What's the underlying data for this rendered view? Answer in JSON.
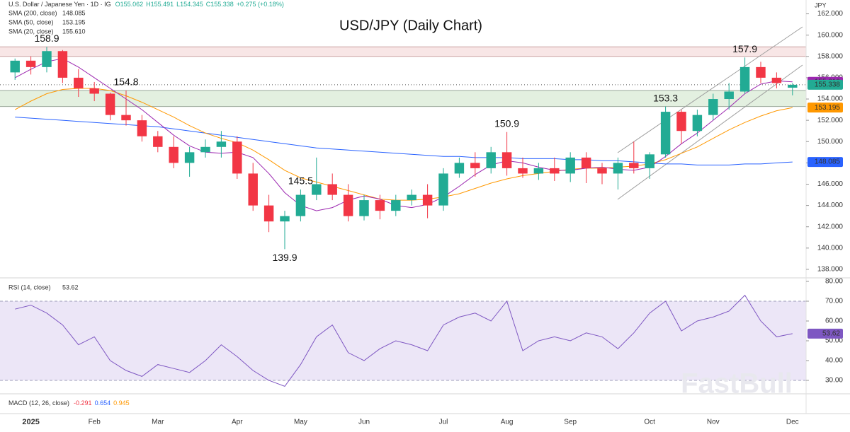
{
  "header": {
    "symbol": "U.S. Dollar / Japanese Yen · 1D · IG",
    "quote": [
      "O155.062",
      "H155.491",
      "L154.345",
      "C155.338",
      "+0.275 (+0.18%)"
    ],
    "watermark": "FastBull"
  },
  "macd": {
    "name": "MACD (12, 26, close)",
    "readings": [
      "-0.291",
      "0.654",
      "0.945"
    ],
    "colors": [
      "#f23645",
      "#2962ff",
      "#ff9800"
    ]
  },
  "chart_data": [
    {
      "type": "candlestick",
      "title": "USD/JPY (Daily Chart)",
      "unit": "JPY",
      "categories": [
        null,
        "2025",
        null,
        null,
        null,
        "Feb",
        null,
        null,
        null,
        "Mar",
        null,
        null,
        null,
        null,
        "Apr",
        null,
        null,
        null,
        "May",
        null,
        null,
        null,
        "Jun",
        null,
        null,
        null,
        null,
        "Jul",
        null,
        null,
        null,
        "Aug",
        null,
        null,
        null,
        "Sep",
        null,
        null,
        null,
        null,
        "Oct",
        null,
        null,
        null,
        "Nov",
        null,
        null,
        null,
        null,
        "Dec"
      ],
      "open": [
        156.5,
        157.6,
        157.0,
        158.5,
        156.0,
        155.0,
        154.5,
        152.5,
        152.0,
        150.5,
        149.5,
        148.0,
        149.0,
        149.5,
        150.0,
        147.0,
        144.0,
        142.5,
        143.0,
        145.0,
        146.0,
        145.0,
        143.0,
        144.5,
        143.5,
        144.5,
        145.0,
        144.0,
        147.0,
        148.0,
        147.5,
        149.0,
        147.5,
        147.0,
        147.5,
        147.0,
        148.5,
        147.5,
        147.0,
        148.0,
        147.5,
        148.8,
        152.8,
        151.0,
        152.5,
        154.0,
        154.7,
        157.0,
        156.0,
        155.062
      ],
      "high": [
        157.8,
        158.0,
        158.9,
        158.6,
        156.8,
        155.6,
        154.6,
        154.8,
        152.5,
        151.0,
        150.5,
        149.5,
        150.2,
        151.0,
        150.5,
        148.0,
        145.0,
        143.5,
        145.5,
        148.5,
        147.0,
        146.0,
        145.0,
        145.0,
        145.0,
        145.5,
        146.0,
        147.5,
        148.5,
        149.0,
        149.5,
        150.9,
        148.5,
        148.0,
        148.5,
        149.0,
        149.0,
        148.0,
        148.5,
        150.0,
        149.0,
        153.3,
        153.0,
        153.0,
        154.5,
        155.5,
        157.9,
        157.5,
        156.5,
        155.491
      ],
      "low": [
        155.8,
        156.3,
        156.5,
        155.5,
        154.2,
        153.8,
        152.0,
        151.5,
        150.0,
        149.0,
        147.5,
        146.7,
        148.5,
        148.5,
        146.5,
        143.5,
        141.5,
        139.9,
        142.5,
        144.5,
        144.5,
        142.5,
        142.6,
        142.7,
        143.0,
        144.0,
        142.8,
        143.5,
        146.6,
        146.7,
        147.0,
        146.8,
        146.6,
        146.4,
        146.3,
        146.2,
        146.1,
        146.0,
        145.5,
        147.0,
        146.5,
        148.5,
        149.8,
        150.5,
        152.0,
        153.0,
        154.5,
        155.5,
        155.0,
        154.345
      ],
      "close": [
        157.6,
        157.0,
        158.5,
        156.0,
        155.0,
        154.5,
        152.5,
        152.0,
        150.5,
        149.5,
        148.0,
        149.0,
        149.5,
        150.0,
        147.0,
        144.0,
        142.5,
        143.0,
        145.0,
        146.0,
        145.0,
        143.0,
        144.5,
        143.5,
        144.5,
        145.0,
        144.0,
        147.0,
        148.0,
        147.5,
        149.0,
        147.5,
        147.0,
        147.5,
        147.0,
        148.5,
        147.5,
        147.0,
        148.0,
        147.5,
        148.8,
        152.8,
        151.0,
        152.5,
        154.0,
        154.7,
        157.0,
        156.0,
        155.5,
        155.338
      ],
      "up_color": "#22ab94",
      "down_color": "#f23645",
      "series": [
        {
          "name": "SMA (200, close)",
          "color": "#2962ff",
          "last_label": "148.085",
          "values": [
            152.3,
            152.2,
            152.1,
            152.0,
            151.9,
            151.8,
            151.7,
            151.6,
            151.5,
            151.4,
            151.2,
            151.0,
            150.8,
            150.6,
            150.4,
            150.2,
            150.0,
            149.8,
            149.6,
            149.4,
            149.3,
            149.2,
            149.1,
            149.0,
            148.9,
            148.8,
            148.7,
            148.6,
            148.6,
            148.5,
            148.5,
            148.5,
            148.4,
            148.4,
            148.4,
            148.3,
            148.3,
            148.2,
            148.2,
            148.1,
            148.0,
            147.9,
            147.9,
            147.8,
            147.8,
            147.8,
            147.9,
            147.9,
            148.0,
            148.085
          ]
        },
        {
          "name": "SMA (50, close)",
          "color": "#ff9800",
          "last_label": "153.195",
          "values": [
            153.0,
            153.8,
            154.5,
            154.9,
            155.0,
            155.0,
            154.8,
            154.3,
            153.7,
            153.0,
            152.3,
            151.5,
            150.8,
            150.3,
            149.9,
            149.2,
            148.3,
            147.3,
            146.6,
            146.2,
            145.8,
            145.4,
            145.0,
            144.6,
            144.5,
            144.5,
            144.6,
            144.8,
            145.1,
            145.6,
            146.1,
            146.5,
            146.8,
            147.0,
            147.2,
            147.4,
            147.5,
            147.5,
            147.6,
            147.7,
            147.9,
            148.3,
            148.9,
            149.5,
            150.3,
            151.1,
            151.8,
            152.4,
            152.9,
            153.195
          ]
        },
        {
          "name": "SMA (20, close)",
          "color": "#9c27b0",
          "last_label": "155.610",
          "values": [
            156.0,
            156.8,
            157.5,
            157.8,
            157.0,
            156.0,
            155.0,
            154.0,
            153.0,
            151.8,
            150.6,
            149.6,
            149.0,
            148.9,
            149.0,
            148.5,
            147.0,
            145.2,
            144.0,
            143.5,
            143.8,
            144.5,
            144.9,
            144.6,
            144.0,
            143.8,
            144.1,
            144.8,
            145.8,
            146.9,
            147.8,
            148.2,
            148.0,
            147.6,
            147.3,
            147.3,
            147.5,
            147.6,
            147.4,
            147.3,
            147.6,
            148.6,
            149.8,
            150.8,
            152.0,
            153.2,
            154.5,
            155.4,
            155.7,
            155.61
          ]
        }
      ],
      "ylim": [
        137.2,
        163.3
      ],
      "yticks": [
        {
          "value": 138,
          "label": "138.000"
        },
        {
          "value": 140,
          "label": "140.000"
        },
        {
          "value": 142,
          "label": "142.000"
        },
        {
          "value": 144,
          "label": "144.000"
        },
        {
          "value": 146,
          "label": "146.000"
        },
        {
          "value": 148,
          "label": "148.000"
        },
        {
          "value": 150,
          "label": "150.000"
        },
        {
          "value": 152,
          "label": "152.000"
        },
        {
          "value": 154,
          "label": "154.000"
        },
        {
          "value": 156,
          "label": "156.000"
        },
        {
          "value": 158,
          "label": "158.000"
        },
        {
          "value": 160,
          "label": "160.000"
        },
        {
          "value": 162,
          "label": "162.000"
        }
      ],
      "zones": [
        {
          "from": 158.0,
          "to": 158.9,
          "color": "#f8e6e6",
          "border": "#c9a0a0"
        },
        {
          "from": 153.3,
          "to": 154.8,
          "color": "#e3f0e0",
          "border": "#9aa79a"
        }
      ],
      "annotations": [
        158.9,
        154.8,
        150.9,
        153.3,
        157.9,
        139.9,
        145.5
      ]
    },
    {
      "type": "line",
      "series": [
        {
          "name": "RSI (14, close)",
          "color": "#7e57c2",
          "values": [
            66,
            68,
            64,
            58,
            48,
            52,
            40,
            35,
            32,
            38,
            36,
            34,
            40,
            48,
            42,
            35,
            30,
            27,
            38,
            52,
            58,
            44,
            40,
            46,
            50,
            48,
            45,
            58,
            62,
            64,
            60,
            70,
            45,
            50,
            52,
            50,
            54,
            52,
            46,
            54,
            64,
            70,
            55,
            60,
            62,
            65,
            73,
            60,
            52,
            53.62
          ]
        }
      ],
      "ylim": [
        24,
        82
      ],
      "yticks": [
        {
          "value": 30,
          "label": "30.00"
        },
        {
          "value": 40,
          "label": "40.00"
        },
        {
          "value": 50,
          "label": "50.00"
        },
        {
          "value": 60,
          "label": "60.00"
        },
        {
          "value": 70,
          "label": "70.00"
        },
        {
          "value": 80,
          "label": "80.00"
        }
      ],
      "bands": [
        30,
        70
      ],
      "band_color": "#ece6f7"
    }
  ]
}
